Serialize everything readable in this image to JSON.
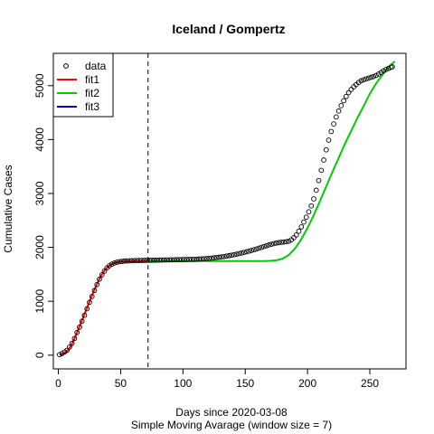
{
  "chart_data": {
    "type": "line",
    "title": "Iceland / Gompertz",
    "xlabel": "Days since 2020-03-08",
    "xlabel2": "Simple Moving Avarage (window size = 7)",
    "ylabel": "Cumulative Cases",
    "xlim": [
      -4,
      279
    ],
    "ylim": [
      -255,
      5600
    ],
    "xticks": [
      0,
      50,
      100,
      150,
      200,
      250
    ],
    "yticks": [
      0,
      1000,
      2000,
      3000,
      4000,
      5000
    ],
    "vline_x": 72,
    "legend_position": "top-left",
    "legend": [
      "data",
      "fit1",
      "fit2",
      "fit3"
    ],
    "colors": {
      "data": "#000000",
      "fit1": "#ff0000",
      "fit2": "#00cd00",
      "fit3": "#0000cd",
      "vline": "#000000"
    },
    "series": [
      {
        "name": "data",
        "style": "points",
        "x": [
          1,
          3,
          5,
          7,
          9,
          11,
          13,
          15,
          17,
          19,
          21,
          23,
          25,
          27,
          29,
          31,
          33,
          35,
          37,
          39,
          41,
          43,
          45,
          47,
          49,
          51,
          53,
          55,
          57,
          59,
          61,
          63,
          65,
          67,
          69,
          71,
          73,
          75,
          77,
          79,
          81,
          83,
          85,
          87,
          89,
          91,
          93,
          95,
          97,
          99,
          101,
          103,
          105,
          107,
          109,
          111,
          113,
          115,
          117,
          119,
          121,
          123,
          125,
          127,
          129,
          131,
          133,
          135,
          137,
          139,
          141,
          143,
          145,
          147,
          149,
          151,
          153,
          155,
          157,
          159,
          161,
          163,
          165,
          167,
          169,
          171,
          173,
          175,
          177,
          179,
          181,
          183,
          185,
          187,
          189,
          191,
          193,
          195,
          197,
          199,
          201,
          203,
          205,
          207,
          209,
          211,
          213,
          215,
          217,
          219,
          221,
          223,
          225,
          227,
          229,
          231,
          233,
          235,
          237,
          239,
          241,
          243,
          245,
          247,
          249,
          251,
          253,
          255,
          257,
          259,
          261,
          263,
          265,
          267,
          268
        ],
        "y": [
          10,
          30,
          60,
          90,
          150,
          220,
          310,
          420,
          520,
          630,
          740,
          860,
          980,
          1090,
          1200,
          1310,
          1410,
          1490,
          1560,
          1620,
          1660,
          1690,
          1710,
          1725,
          1735,
          1740,
          1745,
          1748,
          1750,
          1752,
          1754,
          1755,
          1756,
          1757,
          1758,
          1759,
          1760,
          1761,
          1762,
          1763,
          1764,
          1765,
          1766,
          1767,
          1768,
          1769,
          1770,
          1771,
          1772,
          1773,
          1774,
          1775,
          1776,
          1777,
          1778,
          1780,
          1783,
          1786,
          1789,
          1792,
          1795,
          1800,
          1806,
          1812,
          1818,
          1824,
          1830,
          1838,
          1846,
          1855,
          1864,
          1874,
          1884,
          1895,
          1906,
          1918,
          1930,
          1943,
          1956,
          1970,
          1985,
          2000,
          2015,
          2030,
          2045,
          2058,
          2070,
          2080,
          2088,
          2095,
          2100,
          2105,
          2115,
          2140,
          2180,
          2230,
          2300,
          2380,
          2470,
          2560,
          2660,
          2770,
          2900,
          3060,
          3240,
          3430,
          3620,
          3810,
          3990,
          4150,
          4290,
          4420,
          4530,
          4630,
          4720,
          4800,
          4870,
          4930,
          4980,
          5020,
          5060,
          5090,
          5110,
          5125,
          5140,
          5155,
          5170,
          5190,
          5215,
          5245,
          5275,
          5300,
          5320,
          5340,
          5350
        ]
      },
      {
        "name": "fit1",
        "style": "line",
        "x": [
          1,
          3,
          5,
          7,
          9,
          11,
          13,
          15,
          17,
          19,
          21,
          23,
          25,
          27,
          29,
          31,
          33,
          35,
          37,
          39,
          41,
          43,
          45,
          47,
          49,
          51,
          53,
          55,
          57,
          59,
          61,
          63,
          65,
          67,
          69,
          71,
          72
        ],
        "y": [
          5,
          15,
          35,
          75,
          135,
          215,
          310,
          420,
          530,
          645,
          760,
          875,
          990,
          1105,
          1215,
          1320,
          1415,
          1500,
          1565,
          1620,
          1660,
          1690,
          1710,
          1722,
          1730,
          1735,
          1738,
          1740,
          1741,
          1742,
          1743,
          1743,
          1744,
          1744,
          1744,
          1745,
          1745
        ]
      },
      {
        "name": "fit2",
        "style": "line",
        "x": [
          72,
          80,
          90,
          100,
          110,
          120,
          130,
          140,
          150,
          160,
          165,
          170,
          175,
          180,
          185,
          190,
          195,
          200,
          205,
          210,
          215,
          220,
          225,
          230,
          235,
          240,
          245,
          250,
          255,
          260,
          265,
          270
        ],
        "y": [
          1745,
          1745,
          1745,
          1745,
          1745,
          1745,
          1745,
          1745,
          1745,
          1745,
          1746,
          1750,
          1760,
          1790,
          1860,
          1980,
          2150,
          2360,
          2600,
          2860,
          3130,
          3400,
          3660,
          3920,
          4160,
          4400,
          4620,
          4850,
          5040,
          5200,
          5350,
          5450
        ]
      },
      {
        "name": "fit3",
        "style": "line",
        "x": [],
        "y": []
      }
    ]
  }
}
